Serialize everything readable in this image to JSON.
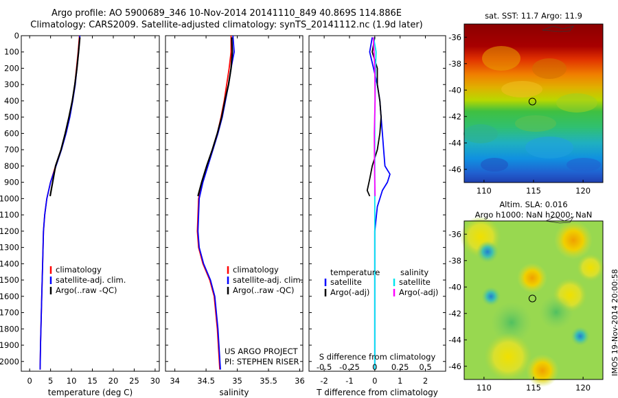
{
  "header": {
    "title_line1": "Argo profile: AO 5900689_346 10-Nov-2014 20141110_849 40.869S 114.886E",
    "title_line2": "Climatology: CARS2009. Satellite-adjusted climatology: synTS_20141112.nc (1.9d later)"
  },
  "colors": {
    "climatology": "#ff0000",
    "satellite": "#0000ff",
    "argo": "#000000",
    "sal_satellite": "#00e5ee",
    "sal_argo": "#ff00ff"
  },
  "chart_data": [
    {
      "type": "line",
      "id": "temperature",
      "xlabel": "temperature (deg C)",
      "ylabel": "",
      "xlim": [
        -2,
        31
      ],
      "ylim": [
        2060,
        0
      ],
      "xticks": [
        0,
        5,
        10,
        15,
        20,
        25,
        30
      ],
      "yticks": [
        0,
        100,
        200,
        300,
        400,
        500,
        600,
        700,
        800,
        900,
        1000,
        1100,
        1200,
        1300,
        1400,
        1500,
        1600,
        1700,
        1800,
        1900,
        2000
      ],
      "legend": [
        "climatology",
        "satellite-adj. clim.",
        "Argo(..raw -QC)"
      ],
      "series": [
        {
          "name": "climatology",
          "color": "#ff0000",
          "x": [
            11.9,
            11.6,
            11.2,
            10.8,
            10.2,
            9.5,
            8.6,
            7.5,
            6.2,
            5.0,
            4.1,
            3.6,
            3.3,
            3.1,
            2.9,
            2.7,
            2.6,
            2.5
          ],
          "y": [
            0,
            100,
            200,
            300,
            400,
            500,
            600,
            700,
            800,
            900,
            1000,
            1100,
            1200,
            1400,
            1600,
            1800,
            1900,
            2050
          ]
        },
        {
          "name": "satellite-adj. clim.",
          "color": "#0000ff",
          "x": [
            12.0,
            11.7,
            11.3,
            10.9,
            10.3,
            9.6,
            8.7,
            7.6,
            6.3,
            5.0,
            4.1,
            3.6,
            3.3,
            3.1,
            2.9,
            2.7,
            2.6,
            2.5
          ],
          "y": [
            0,
            100,
            200,
            300,
            400,
            500,
            600,
            700,
            800,
            900,
            1000,
            1100,
            1200,
            1400,
            1600,
            1800,
            1900,
            2050
          ]
        },
        {
          "name": "Argo(..raw -QC)",
          "color": "#000000",
          "x": [
            12.0,
            11.7,
            11.3,
            10.8,
            10.2,
            9.4,
            8.5,
            7.5,
            6.2,
            4.9
          ],
          "y": [
            10,
            100,
            200,
            300,
            400,
            500,
            600,
            700,
            800,
            985
          ]
        }
      ]
    },
    {
      "type": "line",
      "id": "salinity",
      "xlabel": "salinity",
      "ylabel": "",
      "xlim": [
        33.85,
        36.05
      ],
      "ylim": [
        2060,
        0
      ],
      "xticks": [
        34,
        34.5,
        35,
        35.5,
        36
      ],
      "xtick_labels": [
        "34",
        "34.5",
        "35",
        "35.5",
        "36"
      ],
      "legend": [
        "climatology",
        "satellite-adj. clim.",
        "Argo(..raw -QC)"
      ],
      "annotation": [
        "US ARGO PROJECT",
        "PI: STEPHEN RISER"
      ],
      "series": [
        {
          "name": "climatology",
          "color": "#ff0000",
          "x": [
            34.9,
            34.9,
            34.87,
            34.83,
            34.79,
            34.74,
            34.68,
            34.6,
            34.52,
            34.44,
            34.38,
            34.36,
            34.38,
            34.45,
            34.56,
            34.63,
            34.68,
            34.72
          ],
          "y": [
            0,
            100,
            200,
            300,
            400,
            500,
            600,
            700,
            800,
            900,
            1000,
            1200,
            1300,
            1400,
            1500,
            1600,
            1800,
            2050
          ]
        },
        {
          "name": "satellite-adj. clim.",
          "color": "#0000ff",
          "x": [
            34.93,
            34.95,
            34.9,
            34.86,
            34.81,
            34.76,
            34.69,
            34.61,
            34.53,
            34.45,
            34.39,
            34.37,
            34.39,
            34.46,
            34.57,
            34.64,
            34.69,
            34.73
          ],
          "y": [
            0,
            100,
            200,
            300,
            400,
            500,
            600,
            700,
            800,
            900,
            1000,
            1200,
            1300,
            1400,
            1500,
            1600,
            1800,
            2050
          ]
        },
        {
          "name": "Argo(..raw -QC)",
          "color": "#000000",
          "x": [
            34.91,
            34.92,
            34.9,
            34.86,
            34.8,
            34.75,
            34.68,
            34.6,
            34.51,
            34.43,
            34.37
          ],
          "y": [
            10,
            100,
            200,
            300,
            400,
            500,
            600,
            700,
            800,
            900,
            985
          ]
        }
      ]
    },
    {
      "type": "line",
      "id": "difference",
      "xlabel": "T difference from climatology",
      "xlabel_top": "S difference from climatology",
      "xlim": [
        -2.6,
        2.8
      ],
      "ylim": [
        2060,
        0
      ],
      "xticks": [
        -2,
        -1,
        0,
        1,
        2
      ],
      "xticks_top": [
        -0.5,
        -0.25,
        0,
        0.25,
        0.5
      ],
      "legend_temperature": {
        "title": "temperature",
        "items": [
          "satellite",
          "Argo(-adj)"
        ]
      },
      "legend_salinity": {
        "title": "salinity",
        "items": [
          "satellite",
          "Argo(-adj)"
        ]
      },
      "series": [
        {
          "name": "temperature satellite",
          "color": "#0000ff",
          "x": [
            -0.1,
            -0.2,
            -0.05,
            0.1,
            0.2,
            0.25,
            0.3,
            0.35,
            0.4,
            0.6,
            0.5,
            0.3,
            0.1,
            0.0,
            0.0,
            0.0
          ],
          "y": [
            10,
            100,
            200,
            300,
            400,
            500,
            600,
            700,
            800,
            850,
            900,
            950,
            1050,
            1200,
            1600,
            2050
          ]
        },
        {
          "name": "temperature Argo(-adj)",
          "color": "#000000",
          "x": [
            0.0,
            -0.1,
            0.1,
            0.1,
            0.2,
            0.25,
            0.2,
            0.1,
            -0.1,
            -0.2,
            -0.3,
            -0.2
          ],
          "y": [
            10,
            100,
            200,
            300,
            400,
            500,
            600,
            700,
            800,
            880,
            950,
            985
          ]
        },
        {
          "name": "salinity satellite",
          "color": "#00e5ee",
          "x": [
            -0.05,
            0.05,
            0.03,
            0.02,
            0.0,
            0.0,
            0.0,
            0.0,
            0.0,
            0.0
          ],
          "y": [
            10,
            100,
            200,
            300,
            500,
            800,
            1000,
            1300,
            1700,
            2050
          ]
        },
        {
          "name": "salinity Argo(-adj)",
          "color": "#ff00ff",
          "x": [
            -0.06,
            -0.03,
            0.0,
            0.01,
            -0.02,
            -0.01,
            0.0,
            0.01
          ],
          "y": [
            10,
            100,
            200,
            400,
            600,
            800,
            900,
            985
          ]
        }
      ]
    },
    {
      "type": "heatmap",
      "id": "sst_map",
      "title": "sat. SST: 11.7 Argo: 11.9",
      "xlim": [
        108,
        122
      ],
      "ylim": [
        -47,
        -35
      ],
      "xticks": [
        110,
        115,
        120
      ],
      "yticks": [
        -36,
        -38,
        -40,
        -42,
        -44,
        -46
      ],
      "marker": {
        "lon": 114.886,
        "lat": -40.869
      }
    },
    {
      "type": "heatmap",
      "id": "sla_map",
      "title_line1": "Altim. SLA: 0.016",
      "title_line2": "Argo h1000: NaN h2000: NaN",
      "xlim": [
        108,
        122
      ],
      "ylim": [
        -47,
        -35
      ],
      "xticks": [
        110,
        115,
        120
      ],
      "yticks": [
        -36,
        -38,
        -40,
        -42,
        -44,
        -46
      ],
      "marker": {
        "lon": 114.886,
        "lat": -40.869
      }
    }
  ],
  "side_label": "IMOS 19-Nov-2014 20:00:58"
}
